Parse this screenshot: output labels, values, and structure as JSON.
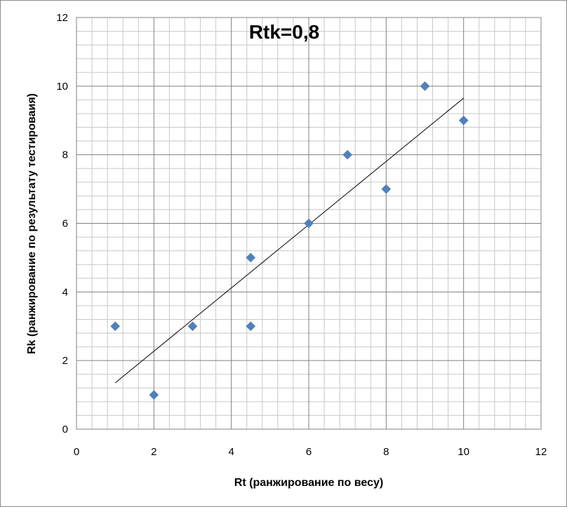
{
  "chart_data": {
    "type": "scatter",
    "title": "Rtk=0,8",
    "xlabel": "Rt (ранжирование по весу)",
    "ylabel": "Rk (ранжирование по результату тестироваия)",
    "xlim": [
      0,
      12
    ],
    "ylim": [
      0,
      12
    ],
    "x_ticks": [
      "0",
      "2",
      "4",
      "6",
      "8",
      "10",
      "12"
    ],
    "y_ticks": [
      "0",
      "2",
      "4",
      "6",
      "8",
      "10",
      "12"
    ],
    "grid": true,
    "legend": "none",
    "series": [
      {
        "color": "#4f81bd",
        "marker": "diamond",
        "points": [
          {
            "x": 1,
            "y": 3
          },
          {
            "x": 2,
            "y": 1
          },
          {
            "x": 3,
            "y": 3
          },
          {
            "x": 4.5,
            "y": 5
          },
          {
            "x": 4.5,
            "y": 3
          },
          {
            "x": 6,
            "y": 6
          },
          {
            "x": 7,
            "y": 8
          },
          {
            "x": 8,
            "y": 7
          },
          {
            "x": 9,
            "y": 10
          },
          {
            "x": 10,
            "y": 9
          }
        ]
      }
    ],
    "trendline": {
      "type": "linear",
      "color": "#000000",
      "x_range": [
        1,
        10
      ],
      "y_values": [
        1.35,
        9.65
      ]
    }
  }
}
